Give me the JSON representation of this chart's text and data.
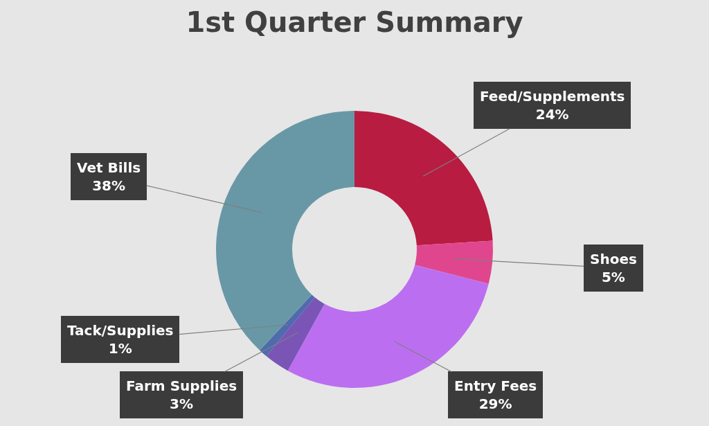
{
  "chart_data": {
    "type": "donut",
    "title": "1st Quarter Summary",
    "categories": [
      "Feed/Supplements",
      "Shoes",
      "Entry Fees",
      "Farm Supplies",
      "Tack/Supplies",
      "Vet Bills"
    ],
    "values": [
      24,
      5,
      29,
      3,
      1,
      38
    ],
    "value_labels": [
      "24%",
      "5%",
      "29%",
      "3%",
      "1%",
      "38%"
    ],
    "colors": [
      "#b81c41",
      "#e0468e",
      "#bb6ff0",
      "#7a55b5",
      "#4f6aad",
      "#6898a6"
    ],
    "legend": false
  }
}
